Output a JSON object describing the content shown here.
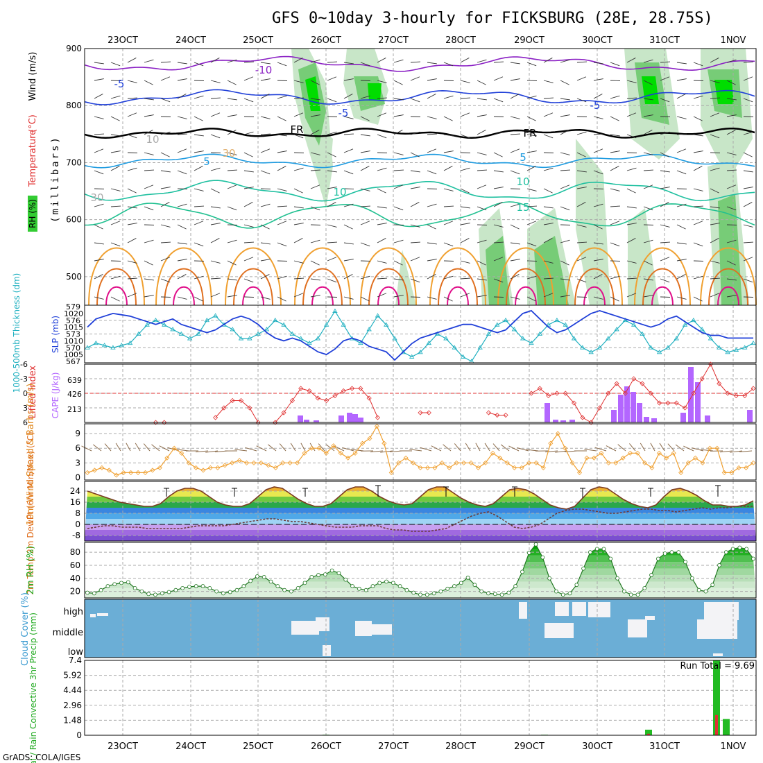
{
  "title": "GFS 0~10day 3-hourly for FICKSBURG (28E, 28.75S)",
  "credit": "GrADS: COLA/IGES",
  "dates": [
    "23OCT",
    "24OCT",
    "25OCT",
    "26OCT",
    "27OCT",
    "28OCT",
    "29OCT",
    "30OCT",
    "31OCT",
    "1NOV"
  ],
  "colors": {
    "purple": "#8a1fc4",
    "blue": "#1f3fd8",
    "ltblue": "#1e9be0",
    "teal": "#1fc0a0",
    "orange": "#f0a030",
    "dkorange": "#e07020",
    "magenta": "#e0108a",
    "rh_green": "#00dd00",
    "cape": "#b366ff",
    "li": "#e03030",
    "wind": "#f0a030",
    "barb": "#8b6b4a",
    "precip": "#22bb22",
    "conv": "#dd3333",
    "cloud_bg": "#6baed6",
    "cloud": "#f3f3f6"
  },
  "chart_data": [
    {
      "type": "heatmap",
      "name": "upper_air",
      "ylabel_parts": [
        "RH (%)",
        "Temperature",
        "(°C)",
        "Wind",
        "(m/s)",
        "(millibars)"
      ],
      "yticks": [
        500,
        600,
        700,
        800,
        900
      ],
      "ylim": [
        450,
        900
      ],
      "contour_labels": [
        "-10",
        "-5",
        "-5",
        "-5",
        "FR",
        "FR",
        "5",
        "5",
        "10",
        "10",
        "15",
        "10",
        "30",
        "30"
      ]
    },
    {
      "type": "line",
      "name": "thickness_slp",
      "ylabel_left": "1000-500mb Thickness (dm)",
      "ylabel_right": "SLP (mb)",
      "left_ticks": [
        579,
        576,
        573,
        570,
        567
      ],
      "right_ticks": [
        1020,
        1015,
        1010,
        1005
      ],
      "thickness": [
        570,
        571,
        570.5,
        570,
        570.5,
        571,
        573,
        575,
        576,
        575,
        574,
        573,
        572,
        573,
        576,
        577,
        575,
        574,
        572,
        572,
        573,
        574,
        576,
        575,
        573,
        572,
        571,
        572,
        575,
        578,
        575,
        572,
        571,
        574,
        577,
        575,
        572,
        569,
        568,
        569,
        571,
        573,
        572,
        570,
        568,
        567,
        570,
        573,
        575,
        576,
        574,
        572,
        571,
        573,
        575,
        576,
        575,
        572,
        570,
        569,
        570,
        572,
        574,
        576,
        575,
        573,
        570,
        569,
        570,
        572,
        575,
        576,
        574,
        572,
        570,
        569,
        569.5,
        570,
        571
      ],
      "slp": [
        1015,
        1018,
        1019,
        1020,
        1019.5,
        1019,
        1018,
        1017,
        1016,
        1017,
        1018,
        1016,
        1015,
        1014,
        1013,
        1014,
        1016,
        1018,
        1019,
        1018,
        1016,
        1013,
        1011,
        1010,
        1011,
        1010,
        1008,
        1006,
        1005,
        1007,
        1010,
        1011,
        1010,
        1008,
        1007,
        1006,
        1003,
        1006,
        1009,
        1011,
        1012,
        1013,
        1014,
        1015,
        1016,
        1016,
        1015,
        1014,
        1013,
        1014,
        1017,
        1020,
        1021,
        1018,
        1015,
        1013,
        1014,
        1016,
        1018,
        1020,
        1021,
        1020,
        1019,
        1018,
        1017,
        1016,
        1015,
        1016,
        1018,
        1019,
        1017,
        1015,
        1013,
        1012,
        1012,
        1011,
        1011,
        1011,
        1011
      ]
    },
    {
      "type": "bar",
      "name": "cape_li",
      "ylabel_left": "Lifted Index",
      "ylabel_right": "CAPE (J/kg)",
      "li_ticks": [
        -6,
        -3,
        0,
        3,
        6
      ],
      "cape_ticks": [
        639,
        426,
        213
      ],
      "lifted_index": [
        null,
        null,
        null,
        null,
        null,
        null,
        null,
        null,
        6,
        6,
        null,
        null,
        null,
        null,
        null,
        5,
        3,
        1.5,
        1.5,
        3,
        6,
        null,
        6,
        4,
        1.5,
        -1,
        -0.5,
        1,
        1.5,
        0.5,
        -0.5,
        -1,
        -1,
        1,
        5,
        null,
        null,
        null,
        null,
        4,
        4,
        null,
        null,
        null,
        null,
        null,
        null,
        4,
        4.5,
        4.5,
        null,
        null,
        0,
        -1,
        0.5,
        0,
        0,
        2,
        5,
        6,
        3,
        0,
        -2,
        0,
        -3,
        -2,
        0,
        2,
        2,
        2,
        3,
        0,
        -3,
        -6,
        -2,
        0,
        0.5,
        0.5,
        -1
      ]
    },
    {
      "type": "line",
      "name": "wind_10m",
      "ylabel": "10m Wind Speed & Barbs (m/s)",
      "yticks": [
        9,
        6,
        3,
        0
      ],
      "speed": [
        1,
        1.5,
        2,
        1.5,
        0.5,
        1,
        1,
        1,
        1,
        1.5,
        2,
        4,
        6,
        5,
        3,
        2,
        1.5,
        2,
        2,
        2.5,
        3,
        3.5,
        3,
        3,
        3,
        2.5,
        2,
        3,
        3,
        3,
        5,
        6,
        6,
        5,
        6.5,
        5,
        4,
        5,
        7,
        8,
        10.5,
        7,
        1,
        3,
        4,
        3,
        2,
        2,
        2,
        3,
        2,
        3,
        3,
        3,
        2,
        3,
        5,
        4,
        3,
        2,
        2,
        3,
        3,
        2,
        7,
        9,
        6,
        3,
        1,
        4,
        4,
        5,
        3,
        3,
        4,
        5,
        5,
        3,
        2,
        5,
        4,
        5,
        1,
        3,
        4,
        3,
        6,
        6,
        1,
        1,
        2,
        2,
        3
      ]
    },
    {
      "type": "line",
      "name": "temp_2m",
      "ylabel": "2m Temp 2m DewPt (6hr Min/Max) (°C)",
      "yticks": [
        24,
        16,
        8,
        0,
        -8
      ],
      "temperature": [
        24,
        22,
        20,
        18,
        16,
        15,
        14,
        13,
        13,
        15,
        20,
        24,
        26,
        26,
        24,
        20,
        16,
        14,
        13,
        13,
        15,
        20,
        25,
        27,
        26,
        22,
        18,
        15,
        13,
        13,
        15,
        20,
        25,
        27,
        27,
        24,
        20,
        17,
        15,
        14,
        15,
        20,
        25,
        27,
        27,
        23,
        19,
        16,
        14,
        13,
        15,
        20,
        25,
        26,
        25,
        22,
        18,
        14,
        12,
        11,
        13,
        19,
        25,
        27,
        26,
        22,
        18,
        15,
        13,
        12,
        14,
        20,
        25,
        26,
        24,
        21,
        17,
        14,
        14,
        13,
        13,
        14,
        17
      ],
      "dewpoint": [
        -3,
        -2,
        -1,
        -1,
        -2,
        -2,
        -2,
        -3,
        -3,
        -3,
        -3,
        -3,
        -2,
        -1,
        -1,
        -1,
        -1,
        0,
        1,
        2,
        3,
        4,
        4,
        3,
        2,
        2,
        1,
        0,
        -1,
        -2,
        -2,
        -2,
        -1,
        -1,
        -1,
        -3,
        -4,
        -4,
        -5,
        -5,
        -5,
        -4,
        -3,
        0,
        3,
        6,
        8,
        9,
        6,
        2,
        -2,
        -3,
        -2,
        0,
        4,
        8,
        10,
        11,
        11,
        10,
        9,
        8,
        8,
        9,
        10,
        11,
        11,
        10,
        10,
        9,
        10,
        11,
        12,
        11,
        12,
        12,
        13,
        13,
        13
      ]
    },
    {
      "type": "area",
      "name": "rh_2m",
      "ylabel": "2m RH (%)",
      "yticks": [
        80,
        60,
        40,
        20
      ],
      "ylim": [
        15,
        95
      ],
      "values": [
        18,
        17,
        22,
        28,
        31,
        33,
        34,
        25,
        20,
        16,
        15,
        17,
        19,
        22,
        25,
        27,
        28,
        28,
        25,
        20,
        17,
        19,
        22,
        28,
        36,
        43,
        42,
        35,
        28,
        22,
        20,
        25,
        33,
        42,
        45,
        46,
        52,
        48,
        38,
        28,
        24,
        22,
        28,
        33,
        35,
        33,
        28,
        22,
        18,
        15,
        15,
        17,
        20,
        24,
        28,
        33,
        41,
        30,
        20,
        17,
        16,
        15,
        18,
        28,
        50,
        79,
        92,
        72,
        40,
        20,
        15,
        17,
        30,
        55,
        80,
        85,
        85,
        70,
        40,
        20,
        15,
        15,
        25,
        45,
        70,
        78,
        80,
        80,
        65,
        40,
        22,
        20,
        30,
        60,
        80,
        85,
        87,
        85,
        70
      ]
    },
    {
      "type": "heatmap",
      "name": "cloud_cover",
      "ylabel": "Cloud Cover (%)",
      "levels": [
        "high",
        "middle",
        "low"
      ]
    },
    {
      "type": "bar",
      "name": "precip",
      "ylabel": "Total / Rain Convective 3hr Precip (mm)",
      "run_total": "Run Total = 9.69",
      "yticks": [
        "7.4",
        "5.92",
        "4.44",
        "2.96",
        "1.48",
        "0"
      ],
      "ylim": [
        0,
        7.4
      ],
      "total": [
        0.05,
        0.05,
        0.3,
        0.1,
        0.1,
        7.4,
        1.6
      ],
      "convective": [
        0,
        0,
        0.1,
        0,
        0,
        2.0,
        0
      ]
    }
  ]
}
